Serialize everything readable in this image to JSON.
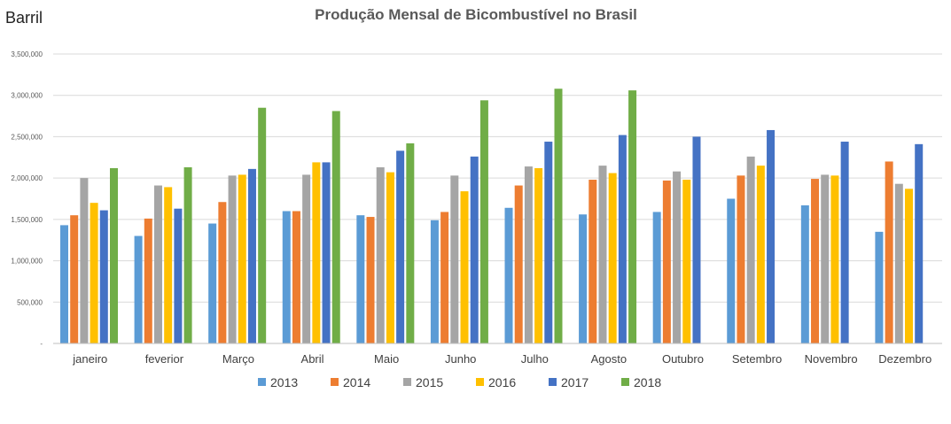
{
  "chart_data": {
    "type": "bar",
    "title": "Produção Mensal de Bicombustível no Brasil",
    "ylabel": "Barril",
    "xlabel": "",
    "ylim": [
      0,
      3500000
    ],
    "yticks": [
      0,
      500000,
      1000000,
      1500000,
      2000000,
      2500000,
      3000000,
      3500000
    ],
    "ytick_labels": [
      "-",
      "500,000",
      "1,000,000",
      "1,500,000",
      "2,000,000",
      "2,500,000",
      "3,000,000",
      "3,500,000"
    ],
    "grid": "horizontal",
    "legend_position": "bottom",
    "categories": [
      "janeiro",
      "feverior",
      "Março",
      "Abril",
      "Maio",
      "Junho",
      "Julho",
      "Agosto",
      "Outubro",
      "Setembro",
      "Novembro",
      "Dezembro"
    ],
    "series": [
      {
        "name": "2013",
        "color": "#5B9BD5",
        "values": [
          1430000,
          1300000,
          1450000,
          1600000,
          1550000,
          1490000,
          1640000,
          1560000,
          1590000,
          1750000,
          1670000,
          1350000
        ]
      },
      {
        "name": "2014",
        "color": "#ED7D31",
        "values": [
          1550000,
          1510000,
          1710000,
          1600000,
          1530000,
          1590000,
          1910000,
          1980000,
          1970000,
          2030000,
          1990000,
          2200000
        ]
      },
      {
        "name": "2015",
        "color": "#A5A5A5",
        "values": [
          2000000,
          1910000,
          2030000,
          2040000,
          2130000,
          2030000,
          2140000,
          2150000,
          2080000,
          2260000,
          2040000,
          1930000
        ]
      },
      {
        "name": "2016",
        "color": "#FFC000",
        "values": [
          1700000,
          1890000,
          2040000,
          2190000,
          2070000,
          1840000,
          2120000,
          2060000,
          1980000,
          2150000,
          2030000,
          1870000
        ]
      },
      {
        "name": "2017",
        "color": "#4472C4",
        "values": [
          1610000,
          1630000,
          2110000,
          2190000,
          2330000,
          2260000,
          2440000,
          2520000,
          2500000,
          2580000,
          2440000,
          2410000
        ]
      },
      {
        "name": "2018",
        "color": "#70AD47",
        "values": [
          2120000,
          2130000,
          2850000,
          2810000,
          2420000,
          2940000,
          3080000,
          3060000,
          null,
          null,
          null,
          null
        ]
      }
    ]
  }
}
